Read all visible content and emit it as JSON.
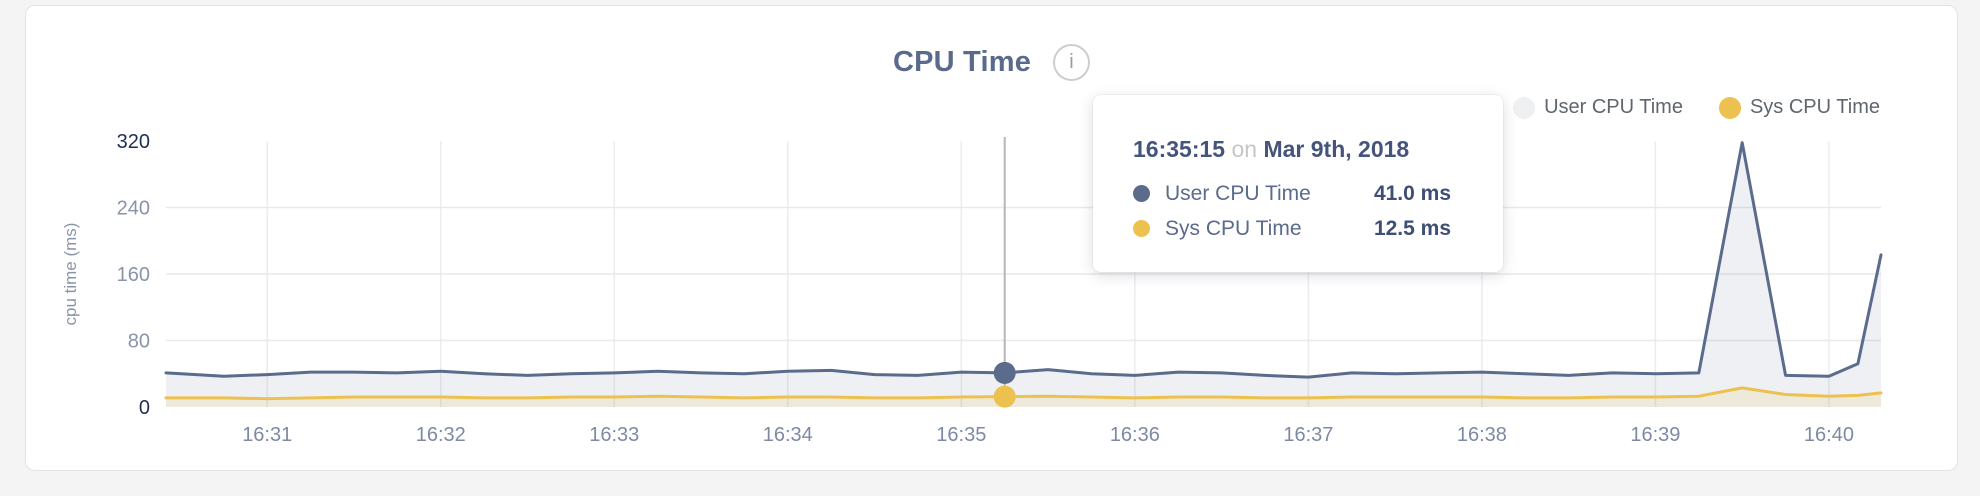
{
  "header": {
    "title": "CPU Time",
    "info_glyph": "i"
  },
  "legend": {
    "items": [
      {
        "label": "User CPU Time",
        "dot_color": "#eff0f2"
      },
      {
        "label": "Sys CPU Time",
        "dot_color": "#edc14f"
      }
    ]
  },
  "tooltip": {
    "time": "16:35:15",
    "connector": "on",
    "date": "Mar 9th, 2018",
    "rows": [
      {
        "label": "User CPU Time",
        "value": "41.0 ms",
        "dot_color": "#5b6b8c"
      },
      {
        "label": "Sys CPU Time",
        "value": "12.5 ms",
        "dot_color": "#edc14f"
      }
    ]
  },
  "chart_data": {
    "type": "line",
    "title": "CPU Time",
    "ylabel": "cpu time (ms)",
    "ylim": [
      0,
      320
    ],
    "yticks": [
      0,
      80,
      160,
      240,
      320
    ],
    "xticks": [
      "16:31",
      "16:32",
      "16:33",
      "16:34",
      "16:35",
      "16:36",
      "16:37",
      "16:38",
      "16:39",
      "16:40"
    ],
    "grid": true,
    "legend_position": "top-right",
    "x": [
      "16:30:25",
      "16:30:45",
      "16:31:00",
      "16:31:15",
      "16:31:30",
      "16:31:45",
      "16:32:00",
      "16:32:15",
      "16:32:30",
      "16:32:45",
      "16:33:00",
      "16:33:15",
      "16:33:30",
      "16:33:45",
      "16:34:00",
      "16:34:15",
      "16:34:30",
      "16:34:45",
      "16:35:00",
      "16:35:15",
      "16:35:30",
      "16:35:45",
      "16:36:00",
      "16:36:15",
      "16:36:30",
      "16:36:45",
      "16:37:00",
      "16:37:15",
      "16:37:30",
      "16:37:45",
      "16:38:00",
      "16:38:15",
      "16:38:30",
      "16:38:45",
      "16:39:00",
      "16:39:15",
      "16:39:30",
      "16:39:45",
      "16:40:00",
      "16:40:10",
      "16:40:18"
    ],
    "series": [
      {
        "name": "User CPU Time",
        "color": "#5b6b8c",
        "fill": "rgba(91,107,140,0.10)",
        "values": [
          41,
          37,
          39,
          42,
          42,
          41,
          43,
          40,
          38,
          40,
          41,
          43,
          41,
          40,
          43,
          44,
          39,
          38,
          42,
          41,
          45,
          40,
          38,
          42,
          41,
          38,
          36,
          41,
          40,
          41,
          42,
          40,
          38,
          41,
          40,
          41,
          318,
          38,
          37,
          52,
          183
        ]
      },
      {
        "name": "Sys CPU Time",
        "color": "#edc14f",
        "fill": "rgba(237,193,79,0.14)",
        "values": [
          11,
          11,
          10,
          11,
          12,
          12,
          12,
          11,
          11,
          12,
          12,
          13,
          12,
          11,
          12,
          12,
          11,
          11,
          12,
          12.5,
          13,
          12,
          11,
          12,
          12,
          11,
          11,
          12,
          12,
          12,
          12,
          11,
          11,
          12,
          12,
          13,
          23,
          15,
          13,
          14,
          17
        ]
      }
    ],
    "hover": {
      "x": "16:35:15",
      "values": [
        41.0,
        12.5
      ]
    }
  }
}
